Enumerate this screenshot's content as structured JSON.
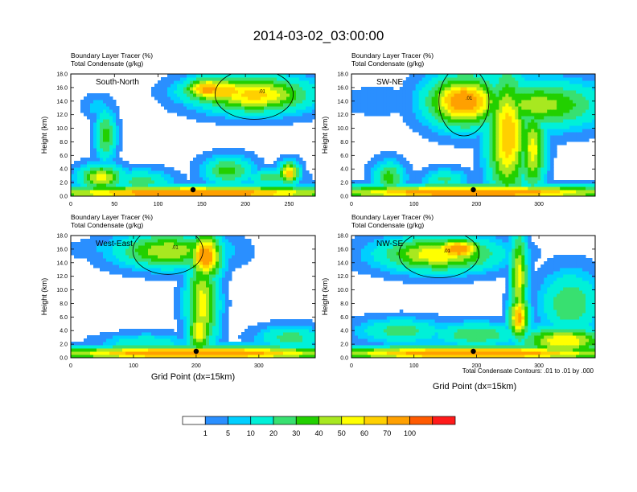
{
  "title": "2014-03-02_03:00:00",
  "panel_labels": [
    "Boundary Layer Tracer   (%)",
    "Total Condensate   (g/kg)"
  ],
  "xlabel": "Grid Point (dx=15km)",
  "ylabel": "Height (km)",
  "contour_note": "Total Condensate Contours: .01 to .01 by .000",
  "contour_label": ".01",
  "colors": {
    "bins": [
      "#ffffff",
      "#2a8fff",
      "#00cfff",
      "#00f0d8",
      "#38e070",
      "#22d000",
      "#a8e820",
      "#ffff00",
      "#ffd000",
      "#ffa000",
      "#ff5a00",
      "#ff1a1a"
    ]
  },
  "chart_data": [
    {
      "type": "heatmap",
      "name": "South-North",
      "xlim": [
        0,
        280
      ],
      "ylim": [
        0,
        18
      ],
      "xticks": [
        "0",
        "50",
        "100",
        "150",
        "200",
        "250"
      ],
      "xtick_values": [
        0,
        50,
        100,
        150,
        200,
        250
      ],
      "yticks": [
        "0.0",
        "2.0",
        "4.0",
        "6.0",
        "8.0",
        "10.0",
        "12.0",
        "14.0",
        "16.0",
        "18.0"
      ],
      "marker_x": 140,
      "blobs": [
        {
          "x": 210,
          "y": 15,
          "w": 56,
          "h": 2.3,
          "v": 65
        },
        {
          "x": 175,
          "y": 15.5,
          "w": 40,
          "h": 1.8,
          "v": 70
        },
        {
          "x": 158,
          "y": 15.8,
          "w": 24,
          "h": 1.5,
          "v": 80
        },
        {
          "x": 238,
          "y": 14.8,
          "w": 30,
          "h": 1.6,
          "v": 45
        },
        {
          "x": 30,
          "y": 13.2,
          "w": 14,
          "h": 1.4,
          "v": 8
        },
        {
          "x": 40,
          "y": 9,
          "w": 10,
          "h": 3.2,
          "v": 35
        },
        {
          "x": 35,
          "y": 2.8,
          "w": 22,
          "h": 1.6,
          "v": 55
        },
        {
          "x": 80,
          "y": 2.2,
          "w": 30,
          "h": 1.5,
          "v": 25
        },
        {
          "x": 180,
          "y": 3.8,
          "w": 24,
          "h": 1.8,
          "v": 35
        },
        {
          "x": 230,
          "y": 2.8,
          "w": 25,
          "h": 1.0,
          "v": 28
        },
        {
          "x": 250,
          "y": 3.5,
          "w": 10,
          "h": 1.4,
          "v": 70
        },
        {
          "x": 140,
          "y": 0.5,
          "w": 160,
          "h": 0.9,
          "v": 90
        }
      ]
    },
    {
      "type": "heatmap",
      "name": "SW-NE",
      "xlim": [
        0,
        390
      ],
      "ylim": [
        0,
        18
      ],
      "xticks": [
        "0",
        "100",
        "200",
        "300"
      ],
      "xtick_values": [
        0,
        100,
        200,
        300
      ],
      "yticks": [
        "0.0",
        "2.0",
        "4.0",
        "6.0",
        "8.0",
        "10.0",
        "12.0",
        "14.0",
        "16.0",
        "18.0"
      ],
      "marker_x": 195,
      "blobs": [
        {
          "x": 180,
          "y": 14,
          "w": 50,
          "h": 3.2,
          "v": 85
        },
        {
          "x": 300,
          "y": 13.5,
          "w": 90,
          "h": 3.0,
          "v": 45
        },
        {
          "x": 250,
          "y": 9,
          "w": 28,
          "h": 8,
          "v": 70
        },
        {
          "x": 290,
          "y": 7,
          "w": 18,
          "h": 5.5,
          "v": 55
        },
        {
          "x": 40,
          "y": 14,
          "w": 50,
          "h": 1.6,
          "v": 5
        },
        {
          "x": 60,
          "y": 2.8,
          "w": 22,
          "h": 2.0,
          "v": 35
        },
        {
          "x": 150,
          "y": 2.5,
          "w": 30,
          "h": 1.3,
          "v": 22
        },
        {
          "x": 195,
          "y": 0.6,
          "w": 220,
          "h": 0.9,
          "v": 90
        }
      ]
    },
    {
      "type": "heatmap",
      "name": "West-East",
      "xlim": [
        0,
        390
      ],
      "ylim": [
        0,
        18
      ],
      "xticks": [
        "0",
        "100",
        "200",
        "300"
      ],
      "xtick_values": [
        0,
        100,
        200,
        300
      ],
      "yticks": [
        "0.0",
        "2.0",
        "4.0",
        "6.0",
        "8.0",
        "10.0",
        "12.0",
        "14.0",
        "16.0",
        "18.0"
      ],
      "marker_x": 200,
      "blobs": [
        {
          "x": 155,
          "y": 15.8,
          "w": 70,
          "h": 2.2,
          "v": 50
        },
        {
          "x": 215,
          "y": 15,
          "w": 22,
          "h": 3.0,
          "v": 85
        },
        {
          "x": 210,
          "y": 8,
          "w": 22,
          "h": 6,
          "v": 55
        },
        {
          "x": 205,
          "y": 4,
          "w": 16,
          "h": 3,
          "v": 60
        },
        {
          "x": 60,
          "y": 16,
          "w": 50,
          "h": 1.3,
          "v": 6
        },
        {
          "x": 350,
          "y": 3,
          "w": 45,
          "h": 1.5,
          "v": 25
        },
        {
          "x": 120,
          "y": 2.2,
          "w": 60,
          "h": 1.2,
          "v": 18
        },
        {
          "x": 200,
          "y": 0.7,
          "w": 220,
          "h": 0.9,
          "v": 90
        }
      ]
    },
    {
      "type": "heatmap",
      "name": "NW-SE",
      "xlim": [
        0,
        390
      ],
      "ylim": [
        0,
        18
      ],
      "xticks": [
        "0",
        "100",
        "200",
        "300"
      ],
      "xtick_values": [
        0,
        100,
        200,
        300
      ],
      "yticks": [
        "0.0",
        "2.0",
        "4.0",
        "6.0",
        "8.0",
        "10.0",
        "12.0",
        "14.0",
        "16.0",
        "18.0"
      ],
      "marker_x": 195,
      "blobs": [
        {
          "x": 140,
          "y": 15.3,
          "w": 80,
          "h": 2.2,
          "v": 60
        },
        {
          "x": 170,
          "y": 16,
          "w": 35,
          "h": 1.4,
          "v": 85
        },
        {
          "x": 268,
          "y": 12,
          "w": 12,
          "h": 6,
          "v": 55
        },
        {
          "x": 268,
          "y": 6,
          "w": 14,
          "h": 3,
          "v": 75
        },
        {
          "x": 350,
          "y": 8,
          "w": 40,
          "h": 4,
          "v": 30
        },
        {
          "x": 80,
          "y": 4,
          "w": 60,
          "h": 1.6,
          "v": 25
        },
        {
          "x": 200,
          "y": 3.5,
          "w": 60,
          "h": 1.5,
          "v": 30
        },
        {
          "x": 340,
          "y": 2.5,
          "w": 60,
          "h": 1.8,
          "v": 60
        },
        {
          "x": 195,
          "y": 0.7,
          "w": 220,
          "h": 0.9,
          "v": 90
        }
      ]
    }
  ],
  "colorbar": {
    "tick_labels": [
      "1",
      "5",
      "10",
      "20",
      "30",
      "40",
      "50",
      "60",
      "70",
      "100"
    ],
    "thresholds": [
      1,
      5,
      10,
      20,
      30,
      40,
      50,
      60,
      70,
      100
    ]
  }
}
